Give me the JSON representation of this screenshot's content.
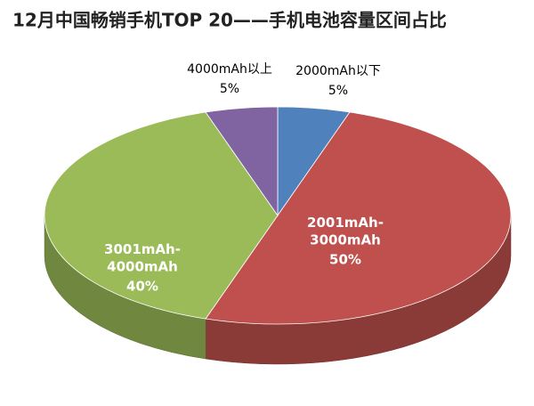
{
  "chart_data": {
    "type": "pie",
    "title": "12月中国畅销手机TOP 20——手机电池容量区间占比",
    "categories": [
      "2000mAh以下",
      "2001mAh-3000mAh",
      "3001mAh-4000mAh",
      "4000mAh以上"
    ],
    "values": [
      5,
      50,
      40,
      5
    ],
    "value_labels": [
      "5%",
      "50%",
      "40%",
      "5%"
    ],
    "colors": [
      "#4f81bd",
      "#c0504d",
      "#9bbb59",
      "#8064a2"
    ]
  }
}
